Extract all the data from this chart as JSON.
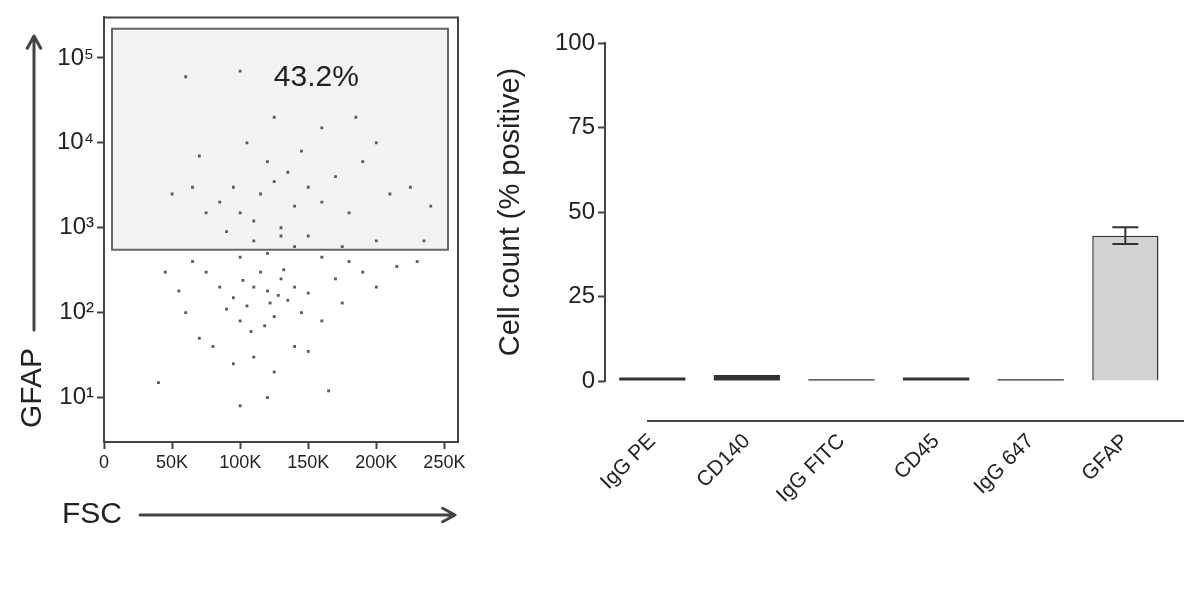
{
  "chart_data": [
    {
      "type": "scatter",
      "xlabel": "FSC",
      "ylabel": "GFAP",
      "color": "#5a5a5a",
      "marker": "square",
      "log": "y",
      "xlim": [
        0,
        260000
      ],
      "ylim": [
        3,
        300000
      ],
      "xticks": [
        0,
        {
          "value": 50000,
          "label": "50K"
        },
        {
          "value": 100000,
          "label": "100K"
        },
        {
          "value": 150000,
          "label": "150K"
        },
        {
          "value": 200000,
          "label": "200K"
        },
        {
          "value": 250000,
          "label": "250K"
        }
      ],
      "yticks": [
        {
          "value": 10,
          "label": "10¹"
        },
        {
          "value": 100,
          "label": "10²"
        },
        {
          "value": 1000,
          "label": "10³"
        },
        {
          "value": 10000,
          "label": "10⁴"
        },
        {
          "value": 100000,
          "label": "10⁵"
        }
      ],
      "bands": [
        {
          "axis": "y",
          "from": 550,
          "to": 220000,
          "color": "#666666"
        }
      ],
      "annotations": [
        "43.2%"
      ],
      "x": [
        95000,
        105000,
        110000,
        120000,
        125000,
        130000,
        100000,
        115000,
        135000,
        140000,
        90000,
        108000,
        122000,
        128000,
        145000,
        85000,
        118000,
        132000,
        102000,
        150000,
        60000,
        70000,
        75000,
        55000,
        160000,
        170000,
        175000,
        190000,
        80000,
        140000,
        110000,
        125000,
        95000,
        150000,
        40000,
        120000,
        165000,
        100000,
        200000,
        215000,
        230000,
        180000,
        65000,
        45000,
        100000,
        120000,
        140000,
        160000,
        110000,
        130000,
        90000,
        150000,
        175000,
        200000,
        100000,
        115000,
        125000,
        135000,
        110000,
        140000,
        150000,
        95000,
        120000,
        130000,
        160000,
        170000,
        85000,
        75000,
        65000,
        180000,
        190000,
        210000,
        225000,
        200000,
        145000,
        105000,
        70000,
        50000,
        160000,
        125000,
        185000,
        60000,
        100000,
        240000,
        235000
      ],
      "values": [
        150,
        120,
        200,
        180,
        90,
        250,
        80,
        300,
        140,
        200,
        110,
        60,
        130,
        160,
        100,
        200,
        70,
        320,
        240,
        170,
        100,
        50,
        300,
        180,
        80,
        250,
        130,
        300,
        40,
        40,
        30,
        20,
        25,
        35,
        15,
        10,
        12,
        8,
        200,
        350,
        400,
        400,
        400,
        300,
        450,
        500,
        600,
        450,
        700,
        800,
        900,
        800,
        600,
        700,
        1500,
        2500,
        3500,
        4500,
        1200,
        1800,
        3000,
        3000,
        6000,
        1000,
        2000,
        4000,
        2000,
        1500,
        3000,
        1500,
        6000,
        2500,
        3000,
        10000,
        8000,
        10000,
        7000,
        2500,
        15000,
        20000,
        20000,
        60000,
        70000,
        1800,
        700
      ]
    },
    {
      "type": "bar",
      "ylabel": "Cell count (% positive)",
      "categories": [
        "IgG PE",
        "CD140",
        "IgG FITC",
        "CD45",
        "IgG 647",
        "GFAP"
      ],
      "values": [
        1,
        1.8,
        0.5,
        1,
        0.5,
        43
      ],
      "errors": [
        null,
        null,
        null,
        null,
        null,
        2.5
      ],
      "colors": [
        "#333333",
        "#333333",
        "#333333",
        "#333333",
        "#333333",
        "#d3d3d3"
      ],
      "ylim": [
        0,
        100
      ],
      "yticks": [
        0,
        25,
        50,
        75,
        100
      ]
    }
  ]
}
